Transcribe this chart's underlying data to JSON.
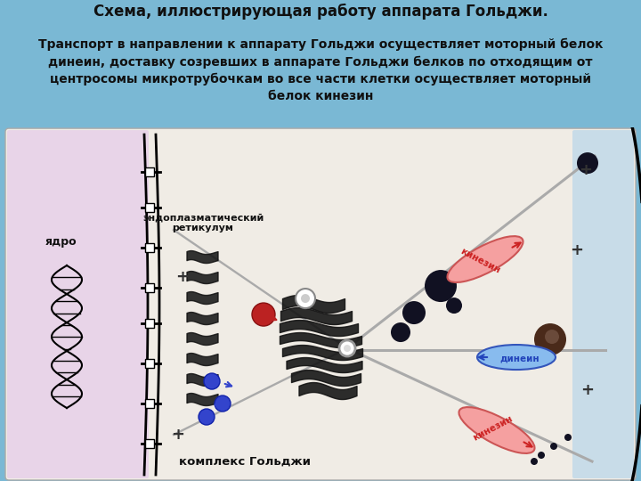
{
  "title": "Схема, иллюстрирующая работу аппарата Гольджи.",
  "subtitle": "Транспорт в направлении к аппарату Гольджи осуществляет моторный белок\nдинеин, доставку созревших в аппарате Гольджи белков по отходящим от\nцентросомы микротрубочкам во все части клетки осуществляет моторный\nбелок кинезин",
  "title_fontsize": 12,
  "subtitle_fontsize": 10,
  "bg_blue": "#7ab8d4",
  "bg_lavender": "#e8d0e8",
  "bg_cream": "#f0ebe0",
  "bg_light_blue": "#c8dce8",
  "label_yadro": "ядро",
  "label_er": "эндоплазматический\nретикулум",
  "label_golgi": "комплекс Гольджи",
  "label_kinesin": "кинезин",
  "label_dynein": "динеин",
  "kinesin_fill": "#f5a0a0",
  "kinesin_edge": "#cc5555",
  "dynein_fill": "#88bbee",
  "dynein_edge": "#3355bb",
  "dark_color": "#111111",
  "red_color": "#cc2222",
  "blue_color": "#2244bb"
}
